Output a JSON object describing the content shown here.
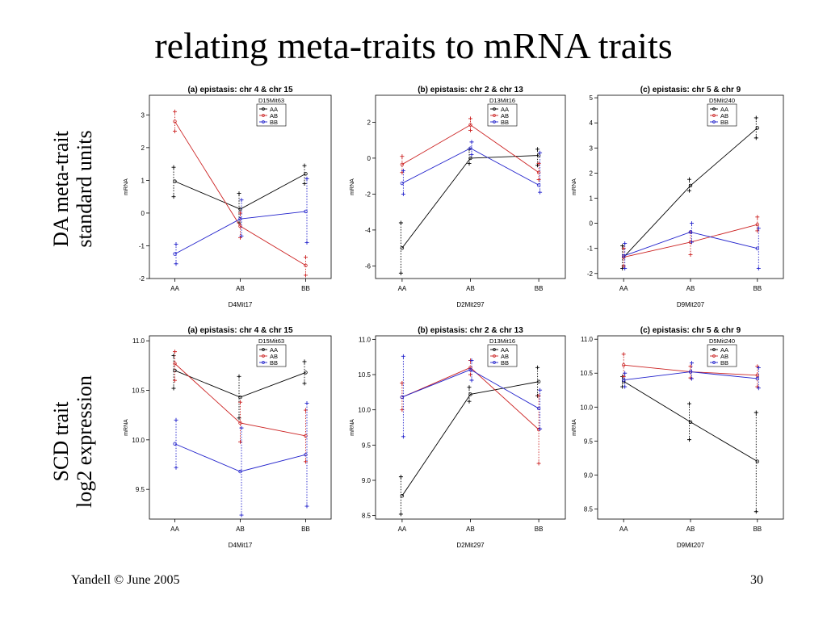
{
  "slide": {
    "title": "relating meta-traits to mRNA traits",
    "row_labels": [
      [
        "DA meta-trait",
        "standard units"
      ],
      [
        "SCD trait",
        "log2 expression"
      ]
    ],
    "footer_left": "Yandell © June 2005",
    "page_number": "30"
  },
  "colors": {
    "AA": "#000000",
    "AB": "#cc2222",
    "BB": "#2222cc"
  },
  "chart_data": [
    {
      "type": "line",
      "title": "(a) epistasis: chr 4 & chr 15",
      "xlabel": "D4Mit17",
      "ylabel": "mRNA",
      "categories": [
        "AA",
        "AB",
        "BB"
      ],
      "legend_title": "D15Mit63",
      "ylim": [
        -2,
        3.6
      ],
      "yticks": [
        -2,
        -1,
        0,
        1,
        2,
        3
      ],
      "series": [
        {
          "name": "AA",
          "values": [
            0.97,
            0.12,
            1.2
          ],
          "range_low": [
            0.5,
            -0.3,
            0.9
          ],
          "range_high": [
            1.4,
            0.6,
            1.45
          ]
        },
        {
          "name": "AB",
          "values": [
            2.8,
            -0.4,
            -1.6
          ],
          "range_low": [
            2.5,
            -0.75,
            -1.9
          ],
          "range_high": [
            3.1,
            0.0,
            -1.35
          ]
        },
        {
          "name": "BB",
          "values": [
            -1.25,
            -0.18,
            0.05
          ],
          "range_low": [
            -1.55,
            -0.7,
            -0.9
          ],
          "range_high": [
            -0.95,
            0.4,
            1.05
          ]
        }
      ]
    },
    {
      "type": "line",
      "title": "(b) epistasis: chr 2 & chr 13",
      "xlabel": "D2Mit297",
      "ylabel": "mRNA",
      "categories": [
        "AA",
        "AB",
        "BB"
      ],
      "legend_title": "D13Mit16",
      "ylim": [
        -6.7,
        3.5
      ],
      "yticks": [
        -6,
        -4,
        -2,
        0,
        2
      ],
      "series": [
        {
          "name": "AA",
          "values": [
            -5.0,
            0.0,
            0.15
          ],
          "range_low": [
            -6.4,
            -0.3,
            -0.4
          ],
          "range_high": [
            -3.6,
            0.5,
            0.5
          ]
        },
        {
          "name": "AB",
          "values": [
            -0.35,
            1.85,
            -0.8
          ],
          "range_low": [
            -0.8,
            1.55,
            -1.2
          ],
          "range_high": [
            0.1,
            2.2,
            -0.3
          ]
        },
        {
          "name": "BB",
          "values": [
            -1.4,
            0.55,
            -1.5
          ],
          "range_low": [
            -2.0,
            0.2,
            -1.9
          ],
          "range_high": [
            -0.7,
            0.9,
            0.3
          ]
        }
      ]
    },
    {
      "type": "line",
      "title": "(c) epistasis: chr 5 & chr 9",
      "xlabel": "D9Mit207",
      "ylabel": "mRNA",
      "categories": [
        "AA",
        "AB",
        "BB"
      ],
      "legend_title": "D5Mit240",
      "ylim": [
        -2.2,
        5.1
      ],
      "yticks": [
        -2,
        -1,
        0,
        1,
        2,
        3,
        4,
        5
      ],
      "series": [
        {
          "name": "AA",
          "values": [
            -1.35,
            1.5,
            3.8
          ],
          "range_low": [
            -1.8,
            1.3,
            3.4
          ],
          "range_high": [
            -0.9,
            1.75,
            4.2
          ]
        },
        {
          "name": "AB",
          "values": [
            -1.35,
            -0.75,
            -0.05
          ],
          "range_low": [
            -1.7,
            -1.25,
            -0.3
          ],
          "range_high": [
            -1.0,
            -0.35,
            0.25
          ]
        },
        {
          "name": "BB",
          "values": [
            -1.3,
            -0.35,
            -1.0
          ],
          "range_low": [
            -1.8,
            -0.75,
            -1.8
          ],
          "range_high": [
            -0.8,
            0.0,
            -0.2
          ]
        }
      ]
    },
    {
      "type": "line",
      "title": "(a) epistasis: chr 4 & chr 15",
      "xlabel": "D4Mit17",
      "ylabel": "mRNA",
      "categories": [
        "AA",
        "AB",
        "BB"
      ],
      "legend_title": "D15Mit63",
      "ylim": [
        9.2,
        11.05
      ],
      "yticks": [
        9.5,
        10.0,
        10.5,
        11.0
      ],
      "yticklabels": [
        "9.5",
        "10.0",
        "10.5",
        "11.0"
      ],
      "series": [
        {
          "name": "AA",
          "values": [
            10.7,
            10.43,
            10.68
          ],
          "range_low": [
            10.52,
            10.22,
            10.57
          ],
          "range_high": [
            10.85,
            10.64,
            10.79
          ]
        },
        {
          "name": "AB",
          "values": [
            10.77,
            10.17,
            10.04
          ],
          "range_low": [
            10.6,
            9.98,
            9.78
          ],
          "range_high": [
            10.89,
            10.38,
            10.3
          ]
        },
        {
          "name": "BB",
          "values": [
            9.96,
            9.68,
            9.85
          ],
          "range_low": [
            9.72,
            9.24,
            9.33
          ],
          "range_high": [
            10.2,
            10.12,
            10.37
          ]
        }
      ]
    },
    {
      "type": "line",
      "title": "(b) epistasis: chr 2 & chr 13",
      "xlabel": "D2Mit297",
      "ylabel": "mRNA",
      "categories": [
        "AA",
        "AB",
        "BB"
      ],
      "legend_title": "D13Mit16",
      "ylim": [
        8.45,
        11.05
      ],
      "yticks": [
        8.5,
        9.0,
        9.5,
        10.0,
        10.5,
        11.0
      ],
      "yticklabels": [
        "8.5",
        "9.0",
        "9.5",
        "10.0",
        "10.5",
        "11.0"
      ],
      "series": [
        {
          "name": "AA",
          "values": [
            8.78,
            10.22,
            10.4
          ],
          "range_low": [
            8.52,
            10.12,
            10.2
          ],
          "range_high": [
            9.05,
            10.32,
            10.6
          ]
        },
        {
          "name": "AB",
          "values": [
            10.18,
            10.6,
            9.72
          ],
          "range_low": [
            10.0,
            10.5,
            9.24
          ],
          "range_high": [
            10.38,
            10.7,
            10.2
          ]
        },
        {
          "name": "BB",
          "values": [
            10.18,
            10.57,
            10.02
          ],
          "range_low": [
            9.62,
            10.42,
            9.73
          ],
          "range_high": [
            10.76,
            10.7,
            10.28
          ]
        }
      ]
    },
    {
      "type": "line",
      "title": "(c) epistasis: chr 5 & chr 9",
      "xlabel": "D9Mit207",
      "ylabel": "mRNA",
      "categories": [
        "AA",
        "AB",
        "BB"
      ],
      "legend_title": "D5Mit240",
      "ylim": [
        8.35,
        11.05
      ],
      "yticks": [
        8.5,
        9.0,
        9.5,
        10.0,
        10.5,
        11.0
      ],
      "yticklabels": [
        "8.5",
        "9.0",
        "9.5",
        "10.0",
        "10.5",
        "11.0"
      ],
      "series": [
        {
          "name": "AA",
          "values": [
            10.38,
            9.78,
            9.2
          ],
          "range_low": [
            10.3,
            9.52,
            8.46
          ],
          "range_high": [
            10.45,
            10.05,
            9.92
          ]
        },
        {
          "name": "AB",
          "values": [
            10.62,
            10.52,
            10.47
          ],
          "range_low": [
            10.45,
            10.43,
            10.3
          ],
          "range_high": [
            10.78,
            10.6,
            10.6
          ]
        },
        {
          "name": "BB",
          "values": [
            10.4,
            10.52,
            10.42
          ],
          "range_low": [
            10.3,
            10.42,
            10.28
          ],
          "range_high": [
            10.5,
            10.65,
            10.58
          ]
        }
      ]
    }
  ]
}
